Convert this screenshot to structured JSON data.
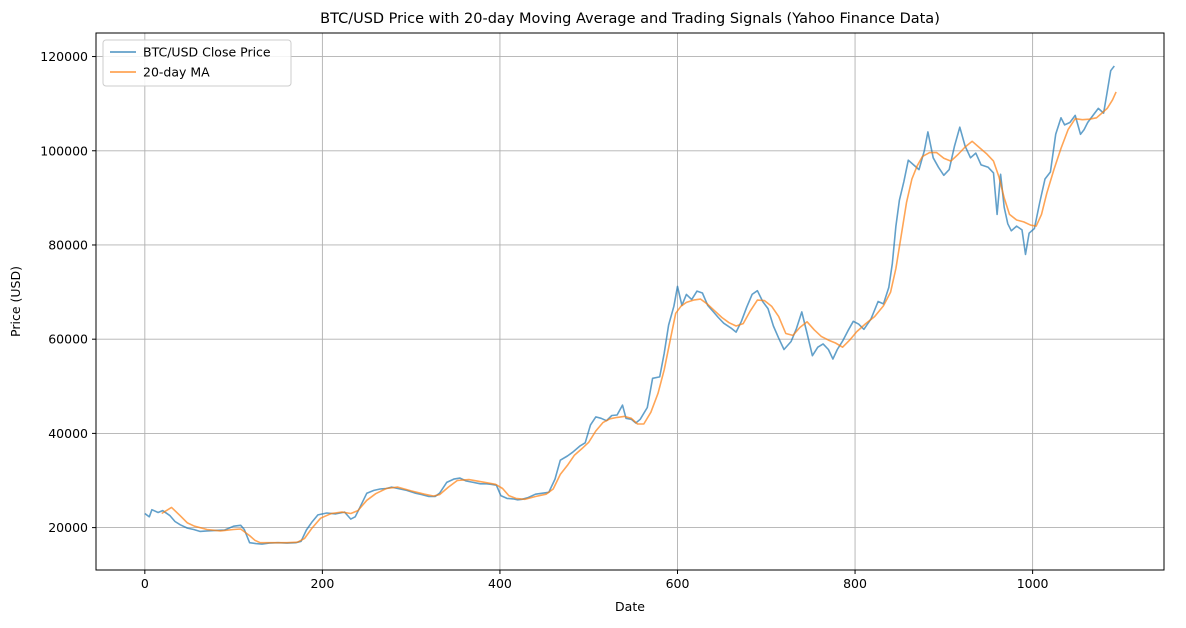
{
  "chart_data": {
    "type": "line",
    "title": "BTC/USD Price with 20-day Moving Average and Trading Signals (Yahoo Finance Data)",
    "xlabel": "Date",
    "ylabel": "Price (USD)",
    "xlim": [
      -55,
      1148
    ],
    "ylim": [
      11000,
      125000
    ],
    "xticks": [
      0,
      200,
      400,
      600,
      800,
      1000
    ],
    "yticks": [
      20000,
      40000,
      60000,
      80000,
      100000,
      120000
    ],
    "grid": true,
    "legend_position": "upper-left",
    "series": [
      {
        "name": "BTC/USD Close Price",
        "color": "#1f77b4",
        "opacity": 0.7,
        "points": [
          [
            0,
            23000
          ],
          [
            5,
            22300
          ],
          [
            8,
            23800
          ],
          [
            15,
            23200
          ],
          [
            20,
            23600
          ],
          [
            28,
            22600
          ],
          [
            34,
            21300
          ],
          [
            40,
            20600
          ],
          [
            48,
            19900
          ],
          [
            55,
            19600
          ],
          [
            62,
            19200
          ],
          [
            70,
            19300
          ],
          [
            80,
            19400
          ],
          [
            90,
            19500
          ],
          [
            100,
            20300
          ],
          [
            108,
            20500
          ],
          [
            112,
            19600
          ],
          [
            118,
            16800
          ],
          [
            125,
            16600
          ],
          [
            132,
            16500
          ],
          [
            140,
            16700
          ],
          [
            150,
            16800
          ],
          [
            160,
            16700
          ],
          [
            170,
            16800
          ],
          [
            176,
            17100
          ],
          [
            182,
            19500
          ],
          [
            188,
            21100
          ],
          [
            195,
            22700
          ],
          [
            205,
            23100
          ],
          [
            215,
            22900
          ],
          [
            225,
            23300
          ],
          [
            232,
            21800
          ],
          [
            237,
            22300
          ],
          [
            242,
            24200
          ],
          [
            250,
            27300
          ],
          [
            258,
            27900
          ],
          [
            265,
            28200
          ],
          [
            272,
            28300
          ],
          [
            278,
            28600
          ],
          [
            285,
            28300
          ],
          [
            295,
            27900
          ],
          [
            305,
            27300
          ],
          [
            312,
            27000
          ],
          [
            320,
            26600
          ],
          [
            327,
            26600
          ],
          [
            332,
            27300
          ],
          [
            340,
            29600
          ],
          [
            348,
            30300
          ],
          [
            355,
            30500
          ],
          [
            362,
            29900
          ],
          [
            370,
            29600
          ],
          [
            378,
            29300
          ],
          [
            385,
            29300
          ],
          [
            390,
            29200
          ],
          [
            396,
            29000
          ],
          [
            401,
            26800
          ],
          [
            408,
            26200
          ],
          [
            415,
            26100
          ],
          [
            420,
            25900
          ],
          [
            425,
            26000
          ],
          [
            432,
            26400
          ],
          [
            440,
            27100
          ],
          [
            448,
            27300
          ],
          [
            455,
            27500
          ],
          [
            462,
            30300
          ],
          [
            468,
            34300
          ],
          [
            476,
            35200
          ],
          [
            482,
            36000
          ],
          [
            490,
            37300
          ],
          [
            496,
            38000
          ],
          [
            502,
            41800
          ],
          [
            508,
            43500
          ],
          [
            514,
            43200
          ],
          [
            520,
            42700
          ],
          [
            526,
            43800
          ],
          [
            532,
            43900
          ],
          [
            538,
            46000
          ],
          [
            542,
            43200
          ],
          [
            548,
            43000
          ],
          [
            553,
            42200
          ],
          [
            558,
            43000
          ],
          [
            566,
            45500
          ],
          [
            572,
            51700
          ],
          [
            580,
            52000
          ],
          [
            585,
            57000
          ],
          [
            590,
            63000
          ],
          [
            596,
            67000
          ],
          [
            600,
            71200
          ],
          [
            605,
            67200
          ],
          [
            610,
            69500
          ],
          [
            616,
            68400
          ],
          [
            622,
            70200
          ],
          [
            628,
            69800
          ],
          [
            634,
            67200
          ],
          [
            640,
            65900
          ],
          [
            646,
            64600
          ],
          [
            652,
            63400
          ],
          [
            660,
            62400
          ],
          [
            666,
            61500
          ],
          [
            672,
            63800
          ],
          [
            678,
            66800
          ],
          [
            684,
            69500
          ],
          [
            690,
            70300
          ],
          [
            696,
            68000
          ],
          [
            702,
            66500
          ],
          [
            708,
            62800
          ],
          [
            714,
            60200
          ],
          [
            720,
            57800
          ],
          [
            728,
            59500
          ],
          [
            734,
            62300
          ],
          [
            740,
            65800
          ],
          [
            746,
            61200
          ],
          [
            752,
            56500
          ],
          [
            758,
            58300
          ],
          [
            764,
            59000
          ],
          [
            770,
            57800
          ],
          [
            775,
            55800
          ],
          [
            780,
            57800
          ],
          [
            786,
            59600
          ],
          [
            792,
            61800
          ],
          [
            798,
            63800
          ],
          [
            804,
            63200
          ],
          [
            810,
            62100
          ],
          [
            818,
            64300
          ],
          [
            826,
            68000
          ],
          [
            832,
            67500
          ],
          [
            838,
            71000
          ],
          [
            842,
            76000
          ],
          [
            846,
            84000
          ],
          [
            850,
            89500
          ],
          [
            855,
            93500
          ],
          [
            860,
            98000
          ],
          [
            866,
            97000
          ],
          [
            872,
            96000
          ],
          [
            878,
            100000
          ],
          [
            882,
            104000
          ],
          [
            888,
            98500
          ],
          [
            894,
            96500
          ],
          [
            900,
            94800
          ],
          [
            906,
            96000
          ],
          [
            912,
            101000
          ],
          [
            918,
            105000
          ],
          [
            924,
            101000
          ],
          [
            930,
            98500
          ],
          [
            936,
            99500
          ],
          [
            942,
            97000
          ],
          [
            950,
            96500
          ],
          [
            956,
            95300
          ],
          [
            960,
            86500
          ],
          [
            964,
            95000
          ],
          [
            968,
            88000
          ],
          [
            972,
            84500
          ],
          [
            976,
            83000
          ],
          [
            982,
            84000
          ],
          [
            988,
            83200
          ],
          [
            992,
            78000
          ],
          [
            996,
            82500
          ],
          [
            1002,
            83500
          ],
          [
            1008,
            89000
          ],
          [
            1014,
            94000
          ],
          [
            1020,
            95500
          ],
          [
            1026,
            103500
          ],
          [
            1032,
            107000
          ],
          [
            1036,
            105500
          ],
          [
            1042,
            106000
          ],
          [
            1048,
            107500
          ],
          [
            1054,
            103500
          ],
          [
            1058,
            104500
          ],
          [
            1062,
            106000
          ],
          [
            1068,
            107500
          ],
          [
            1074,
            109000
          ],
          [
            1080,
            108000
          ],
          [
            1084,
            112500
          ],
          [
            1088,
            117000
          ],
          [
            1092,
            118000
          ]
        ]
      },
      {
        "name": "20-day MA",
        "color": "#ff7f0e",
        "opacity": 0.7,
        "points": [
          [
            19,
            23000
          ],
          [
            30,
            24300
          ],
          [
            40,
            22500
          ],
          [
            48,
            21000
          ],
          [
            56,
            20300
          ],
          [
            70,
            19600
          ],
          [
            85,
            19300
          ],
          [
            100,
            19600
          ],
          [
            108,
            19700
          ],
          [
            118,
            18300
          ],
          [
            124,
            17300
          ],
          [
            130,
            16800
          ],
          [
            145,
            16800
          ],
          [
            160,
            16800
          ],
          [
            172,
            16900
          ],
          [
            180,
            17700
          ],
          [
            188,
            19800
          ],
          [
            198,
            22000
          ],
          [
            210,
            23000
          ],
          [
            222,
            23300
          ],
          [
            232,
            23000
          ],
          [
            240,
            23600
          ],
          [
            250,
            25800
          ],
          [
            260,
            27200
          ],
          [
            272,
            28300
          ],
          [
            285,
            28600
          ],
          [
            300,
            27800
          ],
          [
            315,
            27100
          ],
          [
            325,
            26700
          ],
          [
            332,
            27000
          ],
          [
            342,
            28600
          ],
          [
            352,
            30000
          ],
          [
            365,
            30200
          ],
          [
            380,
            29700
          ],
          [
            395,
            29200
          ],
          [
            403,
            28300
          ],
          [
            410,
            26800
          ],
          [
            418,
            26200
          ],
          [
            428,
            26000
          ],
          [
            440,
            26600
          ],
          [
            452,
            27100
          ],
          [
            460,
            28200
          ],
          [
            468,
            31300
          ],
          [
            476,
            33200
          ],
          [
            484,
            35400
          ],
          [
            492,
            36700
          ],
          [
            500,
            38100
          ],
          [
            508,
            40500
          ],
          [
            516,
            42300
          ],
          [
            524,
            43100
          ],
          [
            532,
            43400
          ],
          [
            540,
            43600
          ],
          [
            548,
            43200
          ],
          [
            555,
            42000
          ],
          [
            562,
            42000
          ],
          [
            570,
            44500
          ],
          [
            578,
            48500
          ],
          [
            585,
            53500
          ],
          [
            592,
            60000
          ],
          [
            598,
            65500
          ],
          [
            604,
            67000
          ],
          [
            610,
            67800
          ],
          [
            618,
            68300
          ],
          [
            626,
            68500
          ],
          [
            634,
            67400
          ],
          [
            642,
            66000
          ],
          [
            650,
            64600
          ],
          [
            658,
            63500
          ],
          [
            666,
            62800
          ],
          [
            674,
            63300
          ],
          [
            682,
            66000
          ],
          [
            690,
            68300
          ],
          [
            698,
            68200
          ],
          [
            706,
            67000
          ],
          [
            714,
            64800
          ],
          [
            722,
            61200
          ],
          [
            730,
            60800
          ],
          [
            738,
            62500
          ],
          [
            746,
            63700
          ],
          [
            754,
            62000
          ],
          [
            762,
            60600
          ],
          [
            770,
            59800
          ],
          [
            778,
            59200
          ],
          [
            786,
            58300
          ],
          [
            794,
            59800
          ],
          [
            802,
            61600
          ],
          [
            812,
            63300
          ],
          [
            822,
            64800
          ],
          [
            832,
            67100
          ],
          [
            840,
            70000
          ],
          [
            846,
            75000
          ],
          [
            852,
            82000
          ],
          [
            858,
            89000
          ],
          [
            864,
            94000
          ],
          [
            870,
            96800
          ],
          [
            876,
            98800
          ],
          [
            884,
            99600
          ],
          [
            892,
            99600
          ],
          [
            900,
            98400
          ],
          [
            908,
            97800
          ],
          [
            916,
            99200
          ],
          [
            924,
            100800
          ],
          [
            932,
            102000
          ],
          [
            940,
            100700
          ],
          [
            948,
            99400
          ],
          [
            956,
            97800
          ],
          [
            962,
            94500
          ],
          [
            968,
            90000
          ],
          [
            974,
            86500
          ],
          [
            982,
            85300
          ],
          [
            990,
            84900
          ],
          [
            998,
            84200
          ],
          [
            1004,
            84000
          ],
          [
            1010,
            86500
          ],
          [
            1016,
            91000
          ],
          [
            1024,
            96000
          ],
          [
            1032,
            100500
          ],
          [
            1040,
            104500
          ],
          [
            1048,
            106800
          ],
          [
            1056,
            106600
          ],
          [
            1064,
            106700
          ],
          [
            1072,
            107000
          ],
          [
            1078,
            108000
          ],
          [
            1084,
            109000
          ],
          [
            1090,
            110800
          ],
          [
            1094,
            112500
          ]
        ]
      }
    ]
  }
}
